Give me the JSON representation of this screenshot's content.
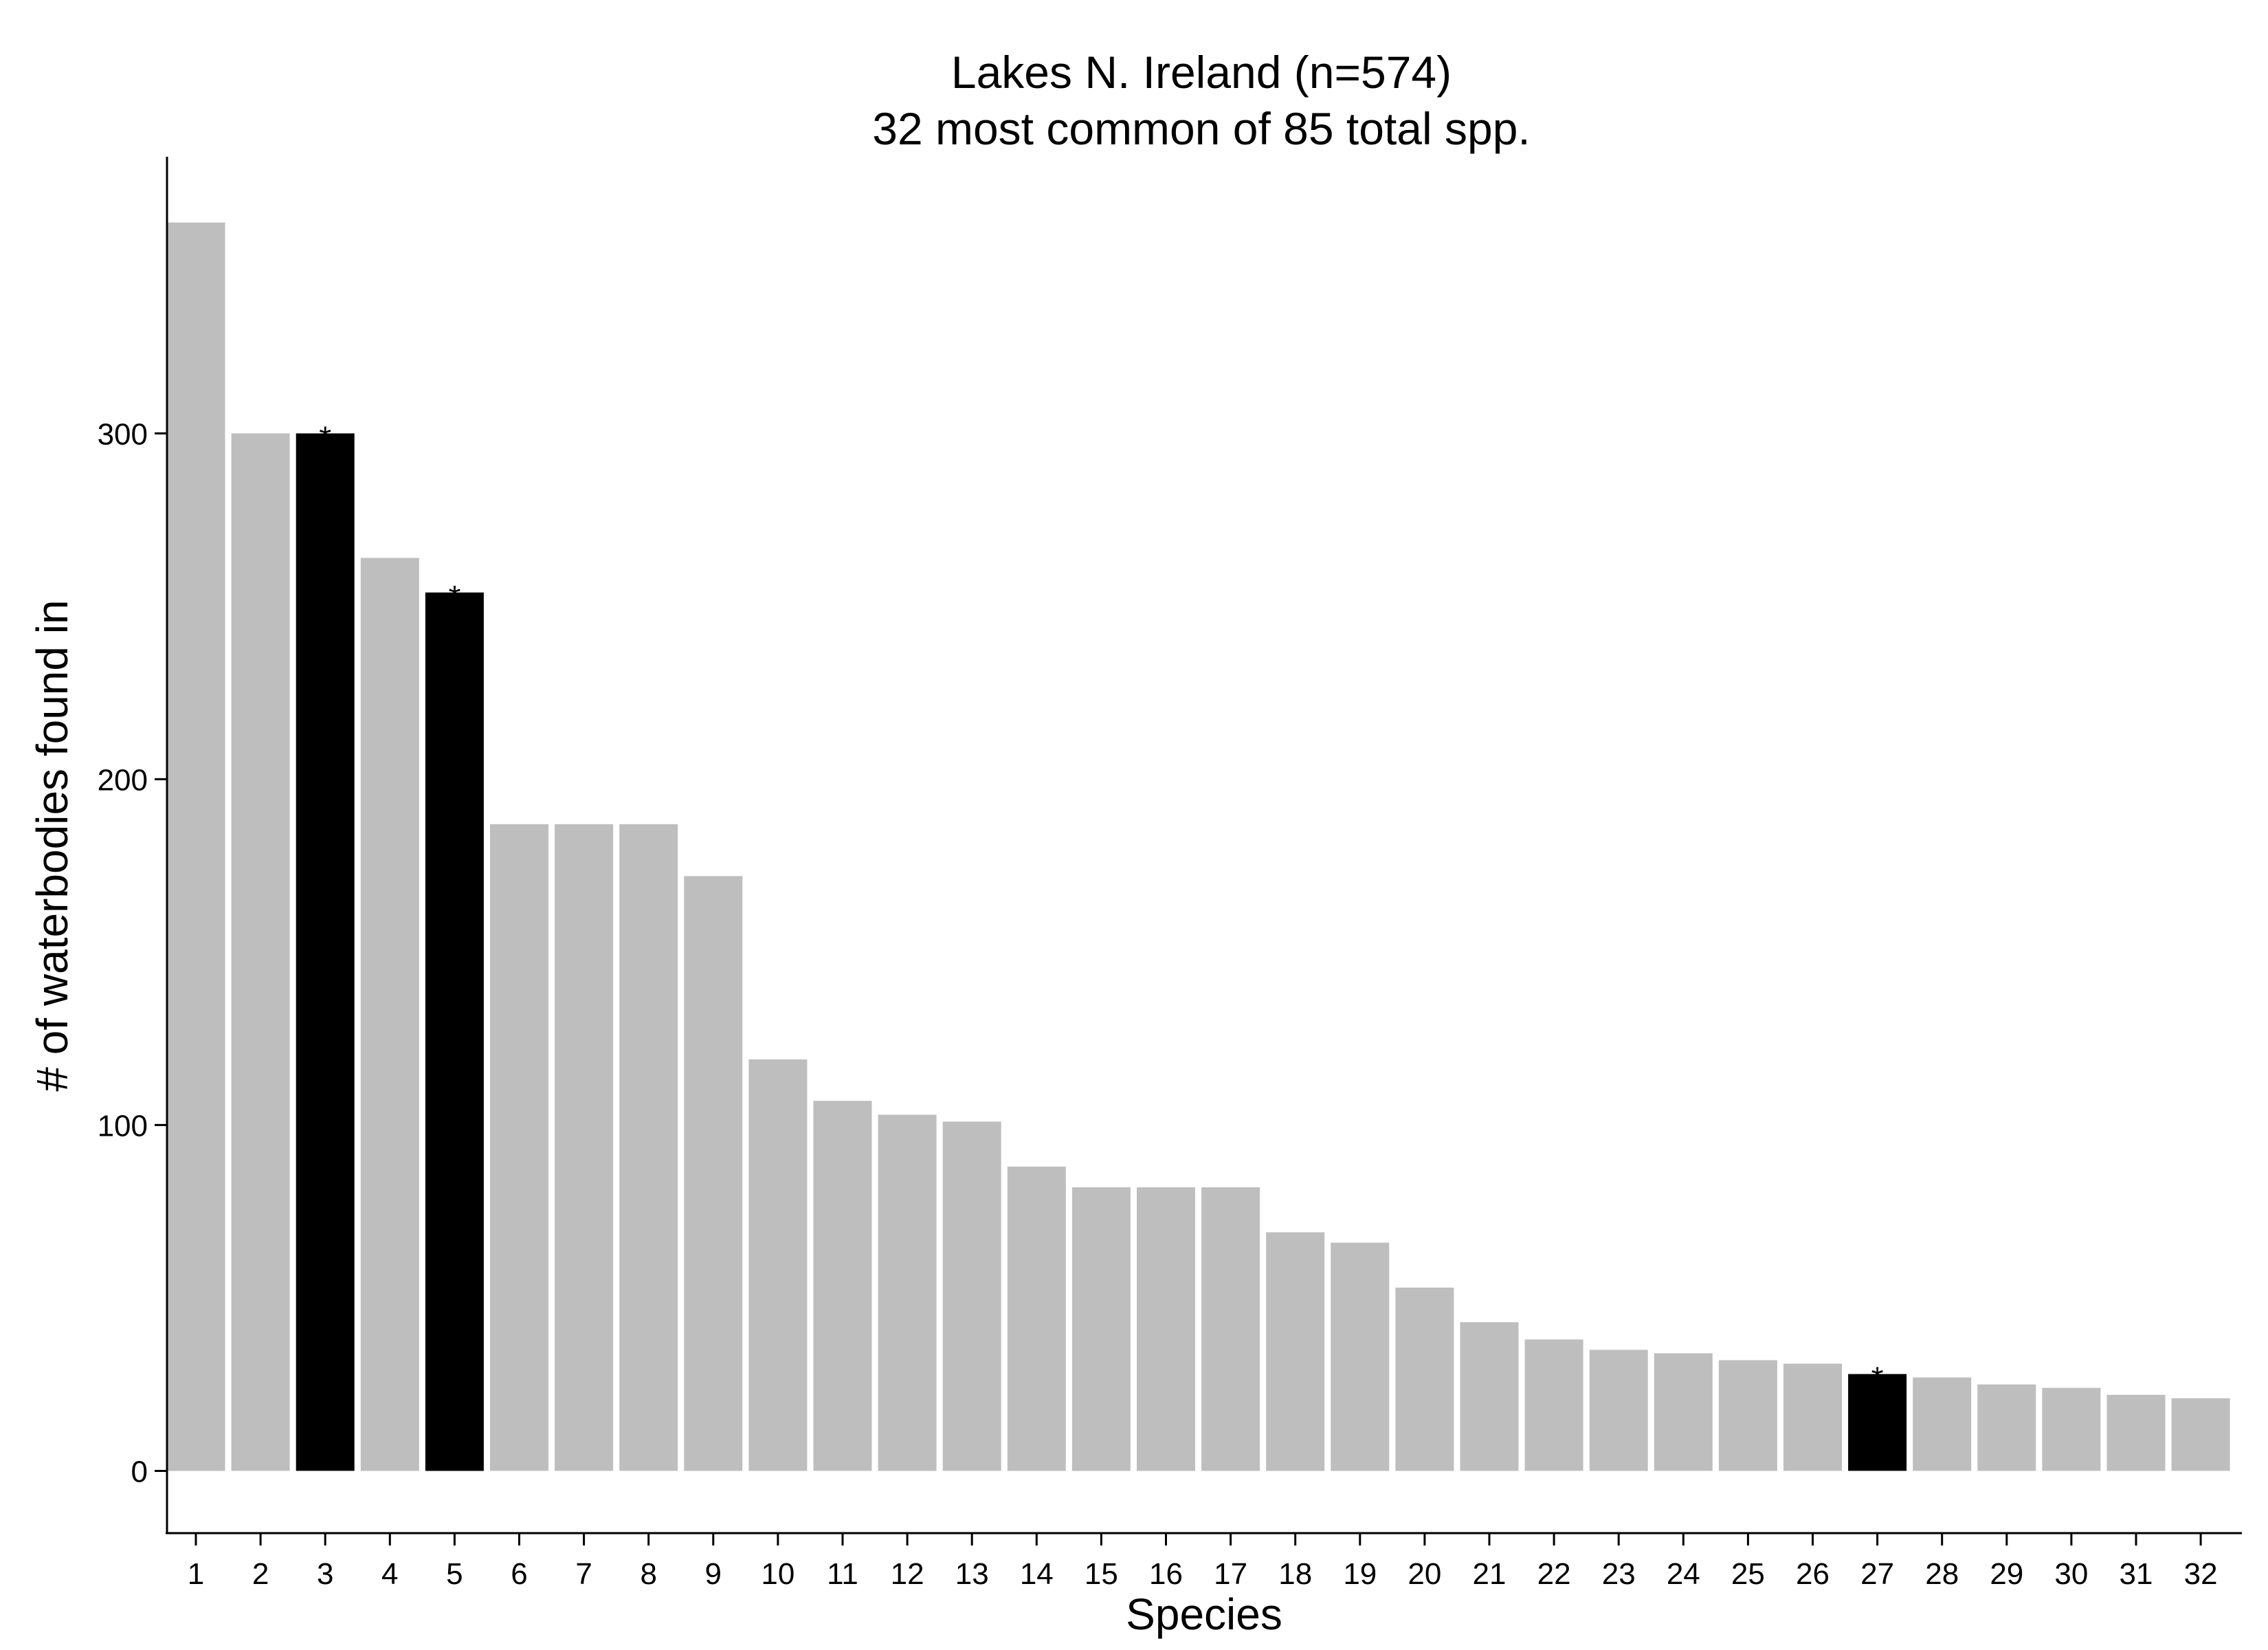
{
  "chart_data": {
    "type": "bar",
    "title": "Lakes N. Ireland (n=574)",
    "subtitle": "32 most common of 85 total spp.",
    "xlabel": "Species",
    "ylabel": "# of waterbodies found in",
    "categories": [
      "1",
      "2",
      "3",
      "4",
      "5",
      "6",
      "7",
      "8",
      "9",
      "10",
      "11",
      "12",
      "13",
      "14",
      "15",
      "16",
      "17",
      "18",
      "19",
      "20",
      "21",
      "22",
      "23",
      "24",
      "25",
      "26",
      "27",
      "28",
      "29",
      "30",
      "31",
      "32"
    ],
    "values": [
      361,
      300,
      300,
      264,
      254,
      187,
      187,
      187,
      172,
      119,
      107,
      103,
      101,
      88,
      82,
      82,
      82,
      69,
      66,
      53,
      43,
      38,
      35,
      34,
      32,
      31,
      28,
      27,
      25,
      24,
      22,
      21
    ],
    "highlighted": [
      false,
      false,
      true,
      false,
      true,
      false,
      false,
      false,
      false,
      false,
      false,
      false,
      false,
      false,
      false,
      false,
      false,
      false,
      false,
      false,
      false,
      false,
      false,
      false,
      false,
      false,
      true,
      false,
      false,
      false,
      false,
      false
    ],
    "marker_label": "*",
    "yticks": [
      0,
      100,
      200,
      300
    ],
    "ylim": [
      -18,
      380
    ],
    "grid": false,
    "legend": "none",
    "colors": {
      "default_bar": "#bebebe",
      "highlight_bar": "#000000",
      "axis": "#000000",
      "background": "#ffffff"
    }
  }
}
